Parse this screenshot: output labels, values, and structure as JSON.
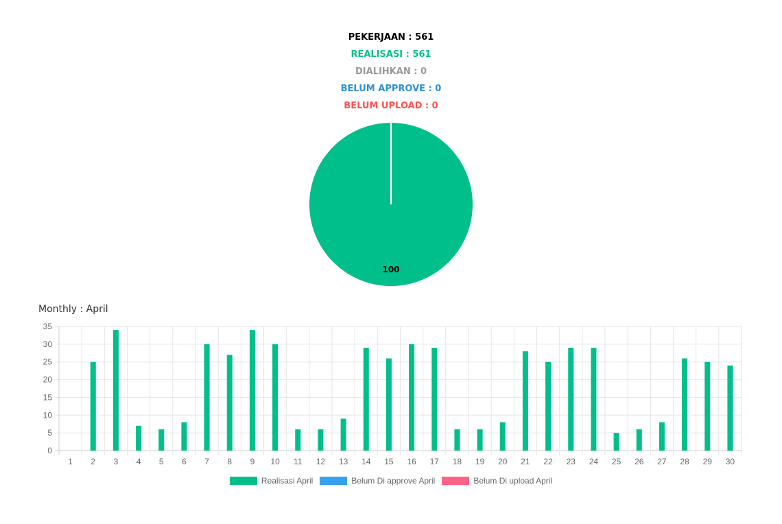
{
  "stats": {
    "pekerjaan": "PEKERJAAN : 561",
    "realisasi": "REALISASI : 561",
    "dialihkan": "DIALIHKAN : 0",
    "belum_approve": "BELUM APPROVE : 0",
    "belum_upload": "BELUM UPLOAD : 0"
  },
  "colors": {
    "pekerjaan": "#000000",
    "realisasi": "#00bf8a",
    "dialihkan": "#999999",
    "belum_approve": "#2e90d2",
    "belum_upload": "#ff5252"
  },
  "chart_data": [
    {
      "type": "pie",
      "slices": [
        {
          "value": 100,
          "label": "100",
          "color": "#00bf8a"
        }
      ]
    },
    {
      "type": "bar",
      "title": "Monthly : April",
      "categories": [
        "1",
        "2",
        "3",
        "4",
        "5",
        "6",
        "7",
        "8",
        "9",
        "10",
        "11",
        "12",
        "13",
        "14",
        "15",
        "16",
        "17",
        "18",
        "19",
        "20",
        "21",
        "22",
        "23",
        "24",
        "25",
        "26",
        "27",
        "28",
        "29",
        "30"
      ],
      "series": [
        {
          "name": "Realisasi April",
          "color": "#00bf8a",
          "values": [
            0,
            25,
            34,
            7,
            6,
            8,
            30,
            27,
            34,
            30,
            6,
            6,
            9,
            29,
            26,
            30,
            29,
            6,
            6,
            8,
            28,
            25,
            29,
            29,
            5,
            6,
            8,
            26,
            25,
            24
          ]
        },
        {
          "name": "Belum Di approve April",
          "color": "#36a2eb",
          "values": [
            0,
            0,
            0,
            0,
            0,
            0,
            0,
            0,
            0,
            0,
            0,
            0,
            0,
            0,
            0,
            0,
            0,
            0,
            0,
            0,
            0,
            0,
            0,
            0,
            0,
            0,
            0,
            0,
            0,
            0
          ]
        },
        {
          "name": "Belum Di upload April",
          "color": "#ff6384",
          "values": [
            0,
            0,
            0,
            0,
            0,
            0,
            0,
            0,
            0,
            0,
            0,
            0,
            0,
            0,
            0,
            0,
            0,
            0,
            0,
            0,
            0,
            0,
            0,
            0,
            0,
            0,
            0,
            0,
            0,
            0
          ]
        }
      ],
      "ylim": [
        0,
        35
      ],
      "yticks": [
        0,
        5,
        10,
        15,
        20,
        25,
        30,
        35
      ],
      "grid": true,
      "legend": "bottom"
    }
  ]
}
